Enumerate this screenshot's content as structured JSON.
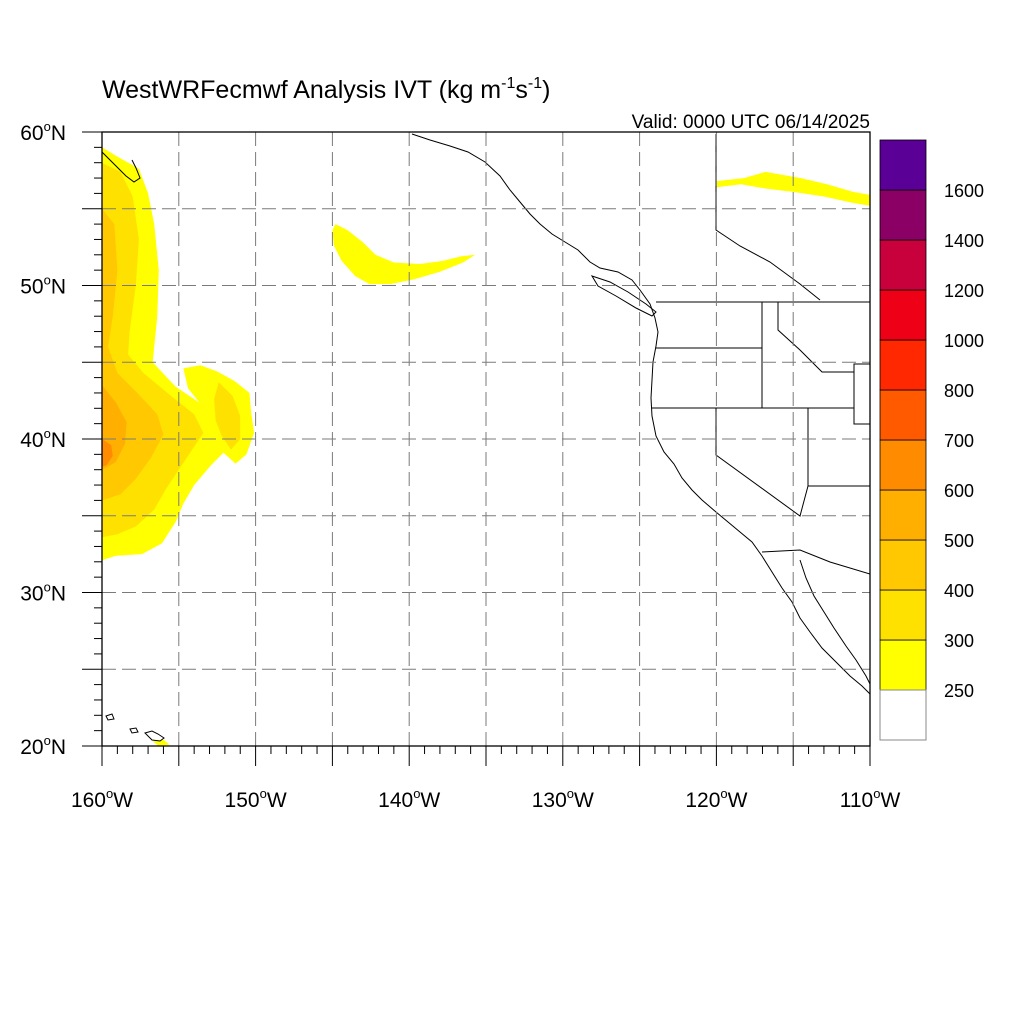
{
  "title": {
    "main": "WestWRFecmwf Analysis IVT (kg m",
    "sup1": "-1",
    "mid": "s",
    "sup2": "-1",
    "close": ")"
  },
  "valid_label": "Valid: 0000 UTC 06/14/2025",
  "map": {
    "projection": "cylindrical-equidistant",
    "lon_range": [
      -160,
      -110
    ],
    "lat_range": [
      20,
      60
    ],
    "grid": true,
    "grid_lon_step": 5,
    "grid_lat_step": 5
  },
  "lat_labels": [
    {
      "value": 60,
      "num": "60",
      "deg": "o",
      "hem": "N"
    },
    {
      "value": 50,
      "num": "50",
      "deg": "o",
      "hem": "N"
    },
    {
      "value": 40,
      "num": "40",
      "deg": "o",
      "hem": "N"
    },
    {
      "value": 30,
      "num": "30",
      "deg": "o",
      "hem": "N"
    },
    {
      "value": 20,
      "num": "20",
      "deg": "o",
      "hem": "N"
    }
  ],
  "lon_labels": [
    {
      "value": -160,
      "num": "160",
      "deg": "o",
      "hem": "W"
    },
    {
      "value": -150,
      "num": "150",
      "deg": "o",
      "hem": "W"
    },
    {
      "value": -140,
      "num": "140",
      "deg": "o",
      "hem": "W"
    },
    {
      "value": -130,
      "num": "130",
      "deg": "o",
      "hem": "W"
    },
    {
      "value": -120,
      "num": "120",
      "deg": "o",
      "hem": "W"
    },
    {
      "value": -110,
      "num": "110",
      "deg": "o",
      "hem": "W"
    }
  ],
  "colorbar": {
    "levels": [
      "250",
      "300",
      "400",
      "500",
      "600",
      "700",
      "800",
      "1000",
      "1200",
      "1400",
      "1600"
    ],
    "colors": [
      "#ffffff",
      "#ffff00",
      "#ffe100",
      "#ffc800",
      "#ffaf00",
      "#ff8c00",
      "#ff5a00",
      "#ff2800",
      "#ee0016",
      "#c8003c",
      "#8b0064",
      "#5a0096"
    ]
  },
  "ivt_regions": [
    {
      "name": "central-pacific-ar-outer",
      "level": 1,
      "points": [
        [
          -160,
          59
        ],
        [
          -159,
          58.4
        ],
        [
          -157.6,
          57.6
        ],
        [
          -157,
          56
        ],
        [
          -156.6,
          54
        ],
        [
          -156.3,
          51
        ],
        [
          -156.4,
          48
        ],
        [
          -156.6,
          46
        ],
        [
          -156.7,
          45
        ],
        [
          -155.2,
          43.4
        ],
        [
          -152.8,
          41.8
        ],
        [
          -151.2,
          40.6
        ],
        [
          -151.6,
          39.6
        ],
        [
          -152.9,
          38.3
        ],
        [
          -154,
          37
        ],
        [
          -154.7,
          35.8
        ],
        [
          -155.2,
          34.6
        ],
        [
          -156.1,
          33.2
        ],
        [
          -157.4,
          32.5
        ],
        [
          -159.1,
          32.4
        ],
        [
          -160,
          32.1
        ]
      ]
    },
    {
      "name": "hook-ar-branch",
      "level": 1,
      "points": [
        [
          -154.7,
          44.6
        ],
        [
          -153.6,
          44.8
        ],
        [
          -152.5,
          44.4
        ],
        [
          -151.4,
          43.8
        ],
        [
          -150.4,
          43
        ],
        [
          -150.3,
          41.8
        ],
        [
          -150.1,
          40.4
        ],
        [
          -150.6,
          39
        ],
        [
          -151.3,
          38.4
        ],
        [
          -152.2,
          39.2
        ],
        [
          -153.2,
          40
        ],
        [
          -153.5,
          40.5
        ],
        [
          -153.2,
          41.8
        ],
        [
          -154.4,
          43.3
        ]
      ]
    },
    {
      "name": "central-pacific-ar-300",
      "level": 2,
      "points": [
        [
          -160,
          58
        ],
        [
          -158.8,
          57.4
        ],
        [
          -158,
          55.8
        ],
        [
          -157.6,
          53
        ],
        [
          -157.8,
          50
        ],
        [
          -158.2,
          47
        ],
        [
          -158.3,
          45.5
        ],
        [
          -157.3,
          44.3
        ],
        [
          -155.5,
          42.8
        ],
        [
          -154,
          41.6
        ],
        [
          -153.4,
          40.4
        ],
        [
          -154.2,
          39.2
        ],
        [
          -155,
          38
        ],
        [
          -155.8,
          36.8
        ],
        [
          -156.6,
          35.4
        ],
        [
          -157.8,
          34.3
        ],
        [
          -159,
          33.8
        ],
        [
          -160,
          33.6
        ]
      ]
    },
    {
      "name": "hook-300",
      "level": 2,
      "points": [
        [
          -152.4,
          43.7
        ],
        [
          -151.5,
          42.8
        ],
        [
          -151,
          41.5
        ],
        [
          -151,
          40
        ],
        [
          -151.6,
          39.3
        ],
        [
          -152.2,
          40.2
        ],
        [
          -152.6,
          41.2
        ],
        [
          -152.7,
          42.6
        ]
      ]
    },
    {
      "name": "central-pacific-ar-400",
      "level": 3,
      "points": [
        [
          -160,
          55
        ],
        [
          -159.2,
          54
        ],
        [
          -159,
          51
        ],
        [
          -159.3,
          48
        ],
        [
          -159.6,
          46
        ],
        [
          -159,
          44.3
        ],
        [
          -157.7,
          43
        ],
        [
          -156.4,
          41.6
        ],
        [
          -156,
          40.3
        ],
        [
          -156.8,
          38.8
        ],
        [
          -157.8,
          37.4
        ],
        [
          -158.8,
          36.4
        ],
        [
          -160,
          36
        ]
      ]
    },
    {
      "name": "central-pacific-ar-500",
      "level": 4,
      "points": [
        [
          -160,
          43.5
        ],
        [
          -159.1,
          42.4
        ],
        [
          -158.4,
          41.1
        ],
        [
          -158.5,
          39.7
        ],
        [
          -159.1,
          38.5
        ],
        [
          -160,
          38
        ]
      ]
    },
    {
      "name": "core-600",
      "level": 5,
      "points": [
        [
          -160,
          40
        ],
        [
          -159.4,
          39.6
        ],
        [
          -159.3,
          38.9
        ],
        [
          -159.7,
          38.3
        ],
        [
          -160,
          38.2
        ]
      ]
    },
    {
      "name": "gulf-alaska-ar",
      "level": 1,
      "points": [
        [
          -144.8,
          54
        ],
        [
          -144,
          53.6
        ],
        [
          -143,
          52.8
        ],
        [
          -142.2,
          52
        ],
        [
          -141,
          51.5
        ],
        [
          -139.3,
          51.4
        ],
        [
          -137.8,
          51.6
        ],
        [
          -136.6,
          51.9
        ],
        [
          -135.7,
          52
        ],
        [
          -136.5,
          51.5
        ],
        [
          -138,
          50.9
        ],
        [
          -139.7,
          50.4
        ],
        [
          -141.2,
          50.1
        ],
        [
          -142.6,
          50.1
        ],
        [
          -143.5,
          50.6
        ],
        [
          -144.4,
          51.6
        ],
        [
          -144.9,
          52.6
        ],
        [
          -145,
          53.6
        ]
      ]
    },
    {
      "name": "canada-ar",
      "level": 1,
      "points": [
        [
          -120,
          56.8
        ],
        [
          -118.2,
          57
        ],
        [
          -116.8,
          57.4
        ],
        [
          -114.5,
          57
        ],
        [
          -112.8,
          56.6
        ],
        [
          -111.1,
          56.1
        ],
        [
          -110,
          55.9
        ],
        [
          -110,
          55.2
        ],
        [
          -111.2,
          55.4
        ],
        [
          -113,
          55.8
        ],
        [
          -115,
          56.1
        ],
        [
          -116.7,
          56.3
        ],
        [
          -118.4,
          56.6
        ],
        [
          -120,
          56.4
        ]
      ]
    },
    {
      "name": "hawaii-patch",
      "level": 1,
      "points": [
        [
          -156.7,
          20.3
        ],
        [
          -156,
          20.4
        ],
        [
          -155.6,
          20.1
        ],
        [
          -156.3,
          20
        ]
      ]
    }
  ]
}
